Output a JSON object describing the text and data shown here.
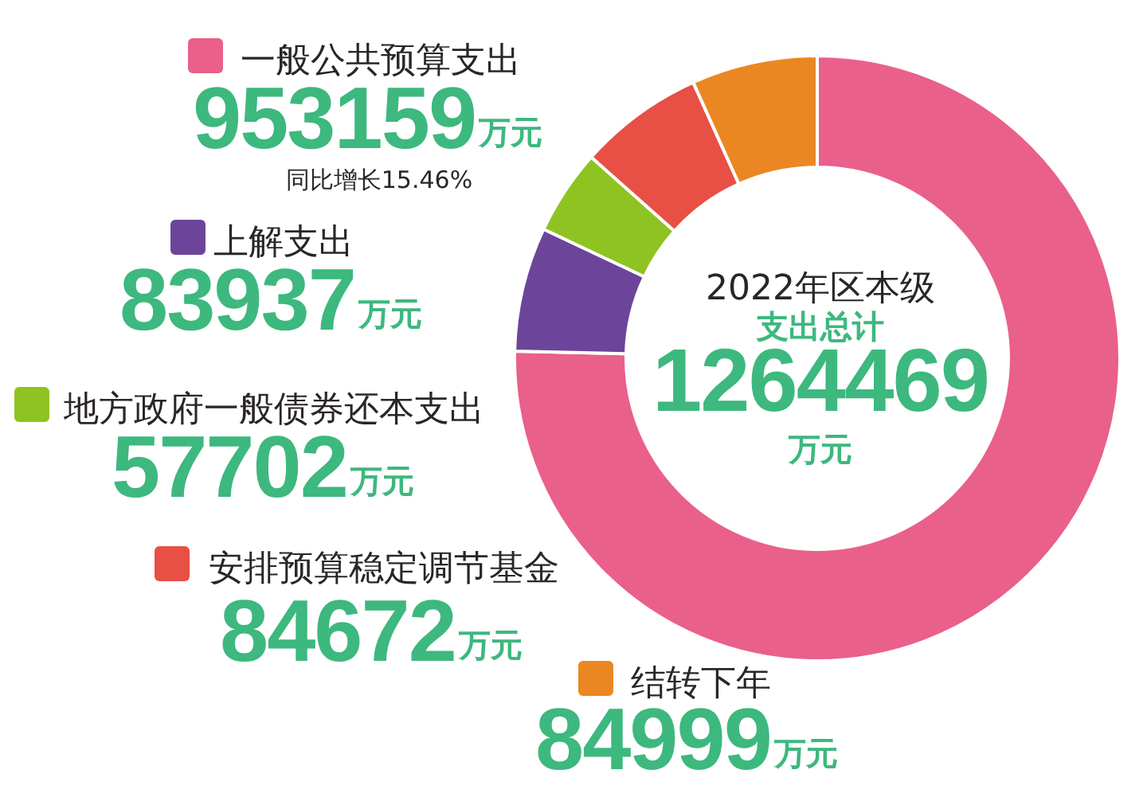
{
  "chart_data": {
    "type": "donut",
    "title": "2022年区本级",
    "subtitle": "支出总计",
    "categories": [
      "一般公共预算支出",
      "上解支出",
      "地方政府一般债券还本支出",
      "安排预算稳定调节基金",
      "结转下年"
    ],
    "values": [
      953159,
      83937,
      57702,
      84672,
      84999
    ],
    "colors": [
      "#e9608a",
      "#6c459b",
      "#8fc322",
      "#e84f45",
      "#ea8722"
    ],
    "value_labels": [
      "953159万元",
      "83937万元",
      "57702万元",
      "84672万元",
      "84999万元"
    ],
    "annotations": [
      "1264469万元",
      "同比增长15.46%"
    ],
    "legend": "left"
  }
}
